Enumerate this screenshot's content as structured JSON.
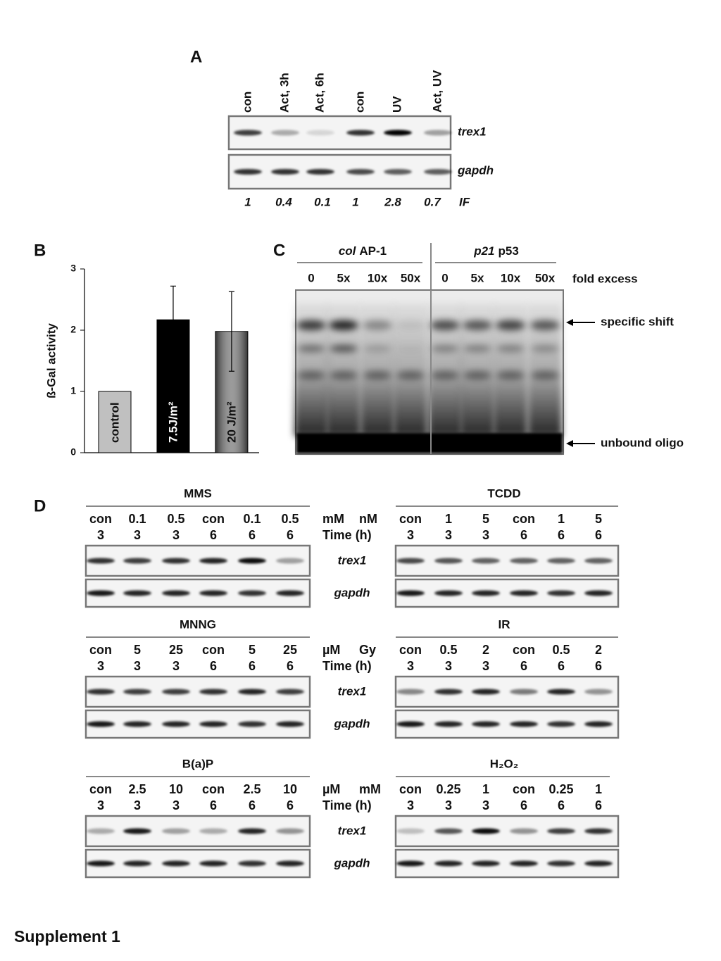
{
  "label": "Supplement 1",
  "panel_letters": [
    "A",
    "B",
    "C",
    "D"
  ],
  "panel_a": {
    "lanes": [
      "con",
      "Act, 3h",
      "Act, 6h",
      "con",
      "UV",
      "Act, UV"
    ],
    "genes": [
      "trex1",
      "gapdh"
    ],
    "if_values": [
      1,
      0.4,
      0.1,
      1,
      2.8,
      0.7
    ],
    "if_label": "IF"
  },
  "chart_data": {
    "type": "bar",
    "ylabel": "ß-Gal activity",
    "categories": [
      "control",
      "7.5J/m²",
      "20 J/m²"
    ],
    "values": [
      1,
      2.17,
      1.98
    ],
    "errors": [
      null,
      0.55,
      0.65
    ],
    "colors": [
      "#c0c0c0",
      "#000000",
      "#808080"
    ],
    "ylim": [
      0,
      3
    ],
    "yticks": [
      0,
      1,
      2,
      3
    ]
  },
  "panel_c": {
    "groups": [
      {
        "italic": "col",
        "name": "AP-1"
      },
      {
        "italic": "p21",
        "name": "p53"
      }
    ],
    "lanes": [
      "0",
      "5x",
      "10x",
      "50x",
      "0",
      "5x",
      "10x",
      "50x"
    ],
    "lanes_label": "fold excess",
    "arrows": [
      "specific shift",
      "unbound oligo"
    ]
  },
  "panel_d": {
    "genes": [
      "trex1",
      "gapdh"
    ],
    "time_label": "Time (h)",
    "rows": [
      {
        "left": {
          "title": "MMS",
          "unit": "mM",
          "doses": [
            "con",
            "0.1",
            "0.5",
            "con",
            "0.1",
            "0.5"
          ],
          "times": [
            3,
            3,
            3,
            6,
            6,
            6
          ]
        },
        "right": {
          "title": "TCDD",
          "unit": "nM",
          "doses": [
            "con",
            "1",
            "5",
            "con",
            "1",
            "5"
          ],
          "times": [
            3,
            3,
            3,
            6,
            6,
            6
          ]
        }
      },
      {
        "left": {
          "title": "MNNG",
          "unit": "µM",
          "doses": [
            "con",
            "5",
            "25",
            "con",
            "5",
            "25"
          ],
          "times": [
            3,
            3,
            3,
            6,
            6,
            6
          ]
        },
        "right": {
          "title": "IR",
          "unit": "Gy",
          "doses": [
            "con",
            "0.5",
            "2",
            "con",
            "0.5",
            "2"
          ],
          "times": [
            3,
            3,
            3,
            6,
            6,
            6
          ]
        }
      },
      {
        "left": {
          "title": "B(a)P",
          "unit": "µM",
          "doses": [
            "con",
            "2.5",
            "10",
            "con",
            "2.5",
            "10"
          ],
          "times": [
            3,
            3,
            3,
            6,
            6,
            6
          ]
        },
        "right": {
          "title": "H₂O₂",
          "unit": "mM",
          "doses": [
            "con",
            "0.25",
            "1",
            "con",
            "0.25",
            "1"
          ],
          "times": [
            3,
            3,
            3,
            6,
            6,
            6
          ]
        }
      }
    ]
  }
}
